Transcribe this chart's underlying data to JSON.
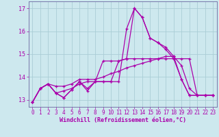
{
  "xlabel": "Windchill (Refroidissement éolien,°C)",
  "bg_color": "#cde8ee",
  "grid_color": "#aacdd6",
  "line_color": "#aa00aa",
  "spine_color": "#7777aa",
  "xlim": [
    -0.5,
    23.5
  ],
  "ylim": [
    12.7,
    17.3
  ],
  "xticks": [
    0,
    1,
    2,
    3,
    4,
    5,
    6,
    7,
    8,
    9,
    10,
    11,
    12,
    13,
    14,
    15,
    16,
    17,
    18,
    19,
    20,
    21,
    22,
    23
  ],
  "yticks": [
    13,
    14,
    15,
    16,
    17
  ],
  "series": [
    [
      12.9,
      13.5,
      13.7,
      13.3,
      13.1,
      13.45,
      13.8,
      13.5,
      13.8,
      13.8,
      13.8,
      13.8,
      16.1,
      17.0,
      16.6,
      15.7,
      15.5,
      15.2,
      14.8,
      13.9,
      13.2,
      13.2,
      13.2,
      13.2
    ],
    [
      12.9,
      13.5,
      13.7,
      13.6,
      13.6,
      13.7,
      13.9,
      13.9,
      13.9,
      14.0,
      14.15,
      14.25,
      14.4,
      14.5,
      14.6,
      14.7,
      14.8,
      14.9,
      14.9,
      14.5,
      13.5,
      13.2,
      13.2,
      13.2
    ],
    [
      12.9,
      13.5,
      13.7,
      13.3,
      13.4,
      13.5,
      13.7,
      13.8,
      13.8,
      13.8,
      13.8,
      14.7,
      14.8,
      14.8,
      14.8,
      14.8,
      14.8,
      14.8,
      14.8,
      14.8,
      14.8,
      13.2,
      13.2,
      13.2
    ],
    [
      12.9,
      13.5,
      13.7,
      13.3,
      13.1,
      13.45,
      13.8,
      13.4,
      13.8,
      14.7,
      14.7,
      14.7,
      14.8,
      17.0,
      16.6,
      15.7,
      15.5,
      15.3,
      14.9,
      13.9,
      13.2,
      13.2,
      13.2,
      13.2
    ]
  ],
  "tick_fontsize": 5.5,
  "xlabel_fontsize": 6.0,
  "linewidth": 0.9,
  "markersize": 3.5
}
